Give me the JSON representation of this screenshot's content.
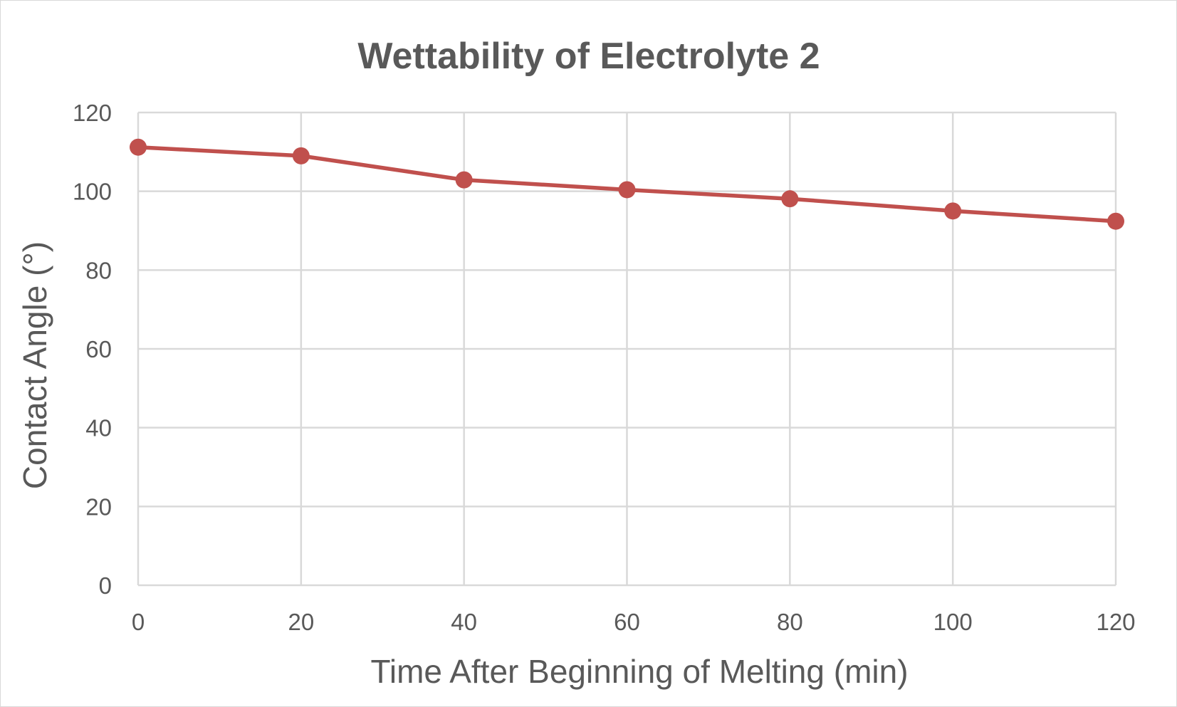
{
  "chart_data": {
    "type": "line",
    "title": "Wettability of Electrolyte 2",
    "xlabel": "Time After Beginning of Melting (min)",
    "ylabel": "Contact Angle (°)",
    "xlim": [
      0,
      120
    ],
    "ylim": [
      0,
      120
    ],
    "xticks": [
      0,
      20,
      40,
      60,
      80,
      100,
      120
    ],
    "yticks": [
      0,
      20,
      40,
      60,
      80,
      100,
      120
    ],
    "grid": true,
    "legend": "none",
    "series": [
      {
        "name": "Electrolyte 2",
        "color": "#c0504d",
        "x": [
          0,
          20,
          40,
          60,
          80,
          100,
          120
        ],
        "y": [
          111.2,
          109,
          102.9,
          100.4,
          98.1,
          95,
          92.4
        ]
      }
    ]
  }
}
